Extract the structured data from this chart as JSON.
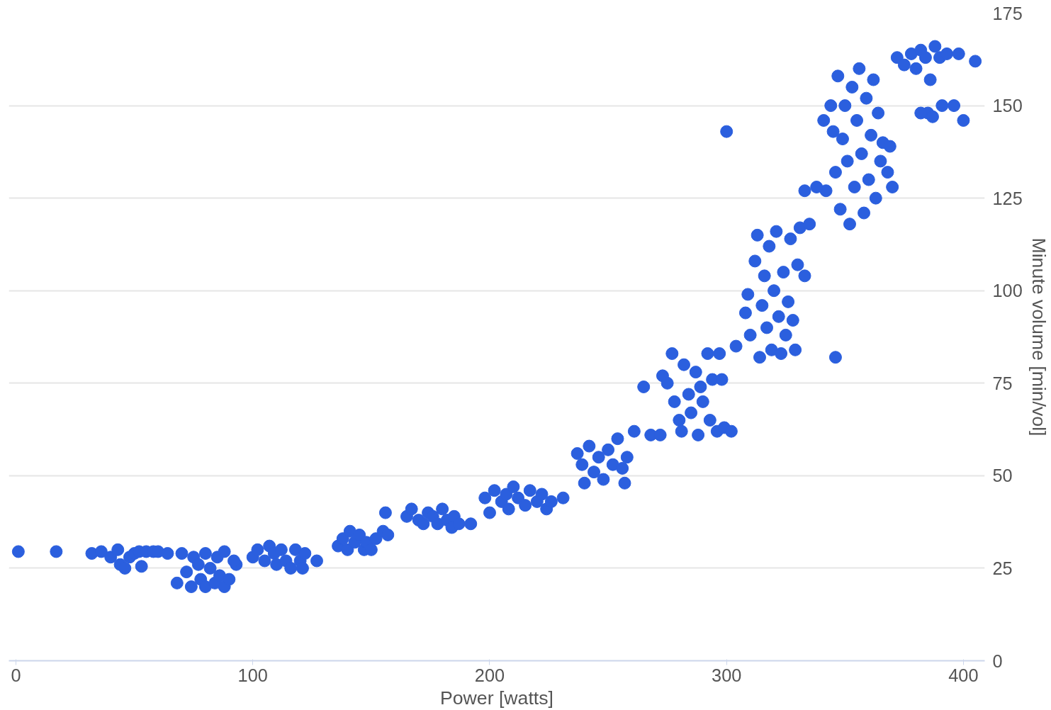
{
  "chart_data": {
    "type": "scatter",
    "xlabel": "Power [watts]",
    "ylabel": "Minute volume [min/vol]",
    "xlim": [
      -3,
      409
    ],
    "ylim": [
      0,
      175
    ],
    "xticks": [
      0,
      100,
      200,
      300,
      400
    ],
    "yticks": [
      0,
      25,
      50,
      75,
      100,
      125,
      150,
      175
    ],
    "grid": "y",
    "marker": "circle",
    "series": [
      {
        "color": "#2b5fde",
        "x": [
          1,
          17,
          32,
          36,
          40,
          43,
          44,
          46,
          48,
          50,
          52,
          53,
          55,
          58,
          60,
          64,
          68,
          70,
          72,
          74,
          75,
          77,
          78,
          80,
          80,
          82,
          84,
          85,
          86,
          88,
          88,
          90,
          93,
          92,
          100,
          102,
          105,
          107,
          109,
          110,
          112,
          114,
          116,
          118,
          120,
          121,
          122,
          127,
          136,
          138,
          140,
          141,
          143,
          145,
          147,
          148,
          150,
          152,
          155,
          157,
          156,
          165,
          167,
          170,
          172,
          174,
          176,
          178,
          180,
          182,
          184,
          185,
          187,
          192,
          198,
          200,
          202,
          205,
          207,
          208,
          210,
          212,
          215,
          217,
          220,
          222,
          224,
          226,
          231,
          237,
          239,
          240,
          242,
          244,
          246,
          248,
          250,
          252,
          254,
          256,
          257,
          258,
          261,
          265,
          268,
          272,
          273,
          275,
          277,
          278,
          280,
          281,
          282,
          284,
          285,
          287,
          288,
          289,
          290,
          292,
          293,
          294,
          296,
          297,
          298,
          299,
          302,
          300,
          304,
          308,
          309,
          310,
          312,
          313,
          314,
          315,
          316,
          317,
          318,
          319,
          320,
          321,
          322,
          323,
          324,
          325,
          326,
          327,
          328,
          329,
          330,
          331,
          333,
          335,
          346,
          341,
          342,
          344,
          345,
          346,
          347,
          348,
          349,
          350,
          351,
          352,
          353,
          354,
          355,
          356,
          357,
          358,
          359,
          360,
          361,
          362,
          363,
          364,
          365,
          366,
          368,
          369,
          370,
          333,
          338,
          372,
          375,
          378,
          380,
          382,
          384,
          385,
          387,
          386,
          388,
          390,
          391,
          393,
          396,
          398,
          400,
          405,
          382
        ],
        "values": [
          29.5,
          29.5,
          29,
          29.5,
          28,
          30,
          26,
          25,
          28,
          29,
          29.5,
          25.5,
          29.5,
          29.5,
          29.5,
          29,
          21,
          29,
          24,
          20,
          28,
          26,
          22,
          20,
          29,
          25,
          21,
          28,
          23,
          20,
          29.5,
          22,
          26,
          27,
          28,
          30,
          27,
          31,
          29,
          26,
          30,
          27,
          25,
          30,
          27,
          25,
          29,
          27,
          31,
          33,
          30,
          35,
          32,
          34,
          30,
          32,
          30,
          33,
          35,
          34,
          40,
          39,
          41,
          38,
          37,
          40,
          39,
          37,
          41,
          38,
          36,
          39,
          37,
          37,
          44,
          40,
          46,
          43,
          45,
          41,
          47,
          44,
          42,
          46,
          43,
          45,
          41,
          43,
          44,
          56,
          53,
          48,
          58,
          51,
          55,
          49,
          57,
          53,
          60,
          52,
          48,
          55,
          62,
          74,
          61,
          61,
          77,
          75,
          83,
          70,
          65,
          62,
          80,
          72,
          67,
          78,
          61,
          74,
          70,
          83,
          65,
          76,
          62,
          83,
          76,
          63,
          62,
          143,
          85,
          94,
          99,
          88,
          108,
          115,
          82,
          96,
          104,
          90,
          112,
          84,
          100,
          116,
          93,
          83,
          105,
          88,
          97,
          114,
          92,
          84,
          107,
          117,
          104,
          118,
          82,
          146,
          127,
          150,
          143,
          132,
          158,
          122,
          141,
          150,
          135,
          118,
          155,
          128,
          146,
          160,
          137,
          121,
          152,
          130,
          142,
          157,
          125,
          148,
          135,
          140,
          132,
          139,
          128,
          127,
          128,
          163,
          161,
          164,
          160,
          165,
          163,
          148,
          147,
          157,
          166,
          163,
          150,
          164,
          150,
          164,
          146,
          162,
          148
        ]
      }
    ]
  }
}
